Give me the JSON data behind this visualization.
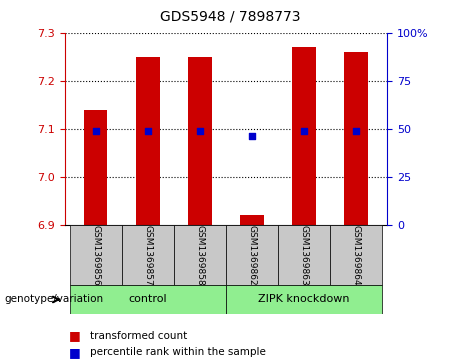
{
  "title": "GDS5948 / 7898773",
  "samples": [
    "GSM1369856",
    "GSM1369857",
    "GSM1369858",
    "GSM1369862",
    "GSM1369863",
    "GSM1369864"
  ],
  "bar_tops": [
    7.14,
    7.25,
    7.25,
    6.92,
    7.27,
    7.26
  ],
  "bar_bottom": 6.9,
  "percentile_values": [
    7.095,
    7.095,
    7.095,
    7.085,
    7.095,
    7.095
  ],
  "ylim": [
    6.9,
    7.3
  ],
  "yticks_left": [
    6.9,
    7.0,
    7.1,
    7.2,
    7.3
  ],
  "yticks_right": [
    0,
    25,
    50,
    75,
    100
  ],
  "bar_color": "#cc0000",
  "dot_color": "#0000cc",
  "group_labels": [
    "control",
    "ZIPK knockdown"
  ],
  "control_color": "#90ee90",
  "zipk_color": "#90ee90",
  "group_box_color": "#c8c8c8",
  "legend_bar_label": "transformed count",
  "legend_dot_label": "percentile rank within the sample",
  "genotype_label": "genotype/variation"
}
